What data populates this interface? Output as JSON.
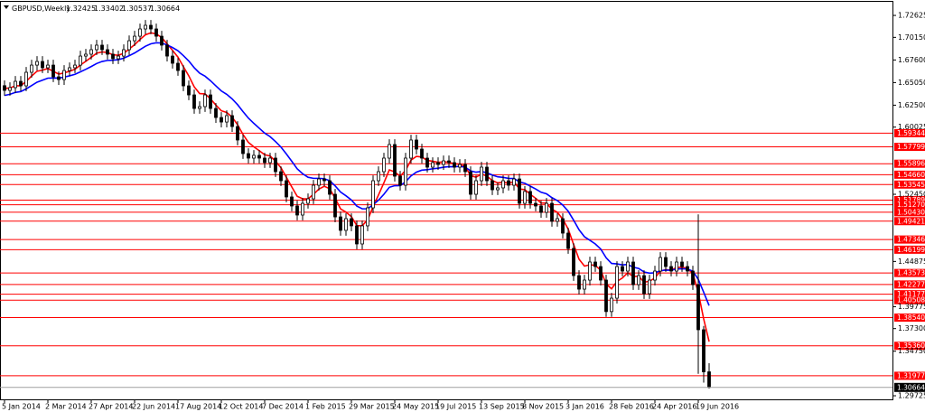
{
  "chart_data": {
    "type": "candlestick",
    "symbol": "GBPUSD,Weekly",
    "categories": [
      "5 Jan 2014",
      null,
      null,
      null,
      null,
      null,
      null,
      null,
      "2 Mar 2014",
      null,
      null,
      null,
      null,
      null,
      null,
      null,
      "27 Apr 2014",
      null,
      null,
      null,
      null,
      null,
      null,
      null,
      "22 Jun 2014",
      null,
      null,
      null,
      null,
      null,
      null,
      null,
      "17 Aug 2014",
      null,
      null,
      null,
      null,
      null,
      null,
      null,
      "12 Oct 2014",
      null,
      null,
      null,
      null,
      null,
      null,
      null,
      "7 Dec 2014",
      null,
      null,
      null,
      null,
      null,
      null,
      null,
      "1 Feb 2015",
      null,
      null,
      null,
      null,
      null,
      null,
      null,
      "29 Mar 2015",
      null,
      null,
      null,
      null,
      null,
      null,
      null,
      "24 May 2015",
      null,
      null,
      null,
      null,
      null,
      null,
      null,
      "19 Jul 2015",
      null,
      null,
      null,
      null,
      null,
      null,
      null,
      "13 Sep 2015",
      null,
      null,
      null,
      null,
      null,
      null,
      null,
      "8 Nov 2015",
      null,
      null,
      null,
      null,
      null,
      null,
      null,
      "3 Jan 2016",
      null,
      null,
      null,
      null,
      null,
      null,
      null,
      "28 Feb 2016",
      null,
      null,
      null,
      null,
      null,
      null,
      null,
      "24 Apr 2016",
      null,
      null,
      null,
      null,
      null,
      null,
      null,
      "19 Jun 2016",
      null,
      null
    ],
    "open": [
      1.647,
      1.6417,
      1.6448,
      1.6519,
      1.6468,
      1.6621,
      1.6702,
      1.6743,
      1.6672,
      1.6702,
      1.657,
      1.6539,
      1.6641,
      1.6672,
      1.6702,
      1.6804,
      1.6825,
      1.6876,
      1.6927,
      1.6876,
      1.6825,
      1.6774,
      1.6804,
      1.6876,
      1.6977,
      1.7028,
      1.711,
      1.7151,
      1.711,
      1.7028,
      1.6927,
      1.6804,
      1.6723,
      1.6641,
      1.6468,
      1.6366,
      1.6213,
      1.6234,
      1.6366,
      1.6213,
      1.6111,
      1.606,
      1.6132,
      1.6009,
      1.5857,
      1.5704,
      1.5653,
      1.5684,
      1.5653,
      1.5602,
      1.5653,
      1.55,
      1.5398,
      1.5215,
      1.5113,
      1.5011,
      1.5143,
      1.5194,
      1.5347,
      1.5418,
      1.5398,
      1.5245,
      1.499,
      1.4838,
      1.497,
      1.4889,
      1.4685,
      1.4889,
      1.5092,
      1.5398,
      1.55,
      1.5653,
      1.5806,
      1.5449,
      1.5347,
      1.5653,
      1.5857,
      1.5755,
      1.5653,
      1.5551,
      1.5602,
      1.5581,
      1.5622,
      1.5602,
      1.5551,
      1.5581,
      1.55,
      1.5245,
      1.5398,
      1.5551,
      1.5398,
      1.5296,
      1.5317,
      1.5398,
      1.5347,
      1.5418,
      1.5143,
      1.5277,
      1.5143,
      1.5113,
      1.5041,
      1.5143,
      1.494,
      1.497,
      1.4807,
      1.4634,
      1.4328,
      1.4175,
      1.4277,
      1.4481,
      1.443,
      1.4277,
      1.3922,
      1.4073,
      1.443,
      1.4379,
      1.4481,
      1.4226,
      1.4328,
      1.4124,
      1.4277,
      1.4379,
      1.4532,
      1.443,
      1.4379,
      1.4481,
      1.443,
      1.4379,
      1.4226,
      1.3717,
      1.32425
    ],
    "high": [
      1.653,
      1.6508,
      1.6579,
      1.6579,
      1.6681,
      1.6762,
      1.6803,
      1.6803,
      1.6762,
      1.6762,
      1.663,
      1.6701,
      1.6732,
      1.6762,
      1.6864,
      1.6885,
      1.6936,
      1.6987,
      1.6987,
      1.6936,
      1.6885,
      1.6864,
      1.6936,
      1.7037,
      1.7088,
      1.717,
      1.7211,
      1.7211,
      1.717,
      1.7088,
      1.6987,
      1.6864,
      1.6783,
      1.6701,
      1.6528,
      1.6426,
      1.6294,
      1.6426,
      1.6426,
      1.6273,
      1.6171,
      1.6192,
      1.6192,
      1.6069,
      1.5917,
      1.5764,
      1.5744,
      1.5744,
      1.5713,
      1.5713,
      1.5713,
      1.556,
      1.5458,
      1.5275,
      1.5173,
      1.5203,
      1.5254,
      1.5407,
      1.5478,
      1.5478,
      1.5458,
      1.5305,
      1.505,
      1.503,
      1.503,
      1.4949,
      1.4949,
      1.5152,
      1.5458,
      1.556,
      1.5713,
      1.5866,
      1.5866,
      1.5509,
      1.5713,
      1.5917,
      1.5917,
      1.5815,
      1.5713,
      1.5662,
      1.5662,
      1.5682,
      1.5682,
      1.5662,
      1.5641,
      1.5641,
      1.556,
      1.5458,
      1.5611,
      1.5611,
      1.5458,
      1.5377,
      1.5458,
      1.5458,
      1.5478,
      1.5478,
      1.5337,
      1.5337,
      1.5203,
      1.5173,
      1.5203,
      1.5203,
      1.503,
      1.503,
      1.4867,
      1.4694,
      1.4388,
      1.4337,
      1.4541,
      1.4541,
      1.449,
      1.4337,
      1.4133,
      1.449,
      1.449,
      1.4541,
      1.4541,
      1.4388,
      1.4388,
      1.4337,
      1.4439,
      1.4592,
      1.4592,
      1.449,
      1.4541,
      1.4541,
      1.449,
      1.4439,
      1.5018,
      1.376,
      1.33402
    ],
    "low": [
      1.6357,
      1.6357,
      1.6388,
      1.6408,
      1.6408,
      1.6561,
      1.6642,
      1.6612,
      1.6612,
      1.651,
      1.6479,
      1.6479,
      1.6581,
      1.6612,
      1.6642,
      1.6744,
      1.6765,
      1.6816,
      1.6816,
      1.6765,
      1.6714,
      1.6714,
      1.6744,
      1.6816,
      1.6917,
      1.6968,
      1.705,
      1.705,
      1.6968,
      1.6867,
      1.6744,
      1.6663,
      1.6581,
      1.6408,
      1.6306,
      1.6153,
      1.6153,
      1.6174,
      1.6153,
      1.6051,
      1.6,
      1.6,
      1.5949,
      1.5797,
      1.5644,
      1.5593,
      1.5593,
      1.5593,
      1.5542,
      1.5542,
      1.544,
      1.5338,
      1.5155,
      1.5053,
      1.4951,
      1.4951,
      1.5083,
      1.5134,
      1.5287,
      1.5338,
      1.5185,
      1.493,
      1.4778,
      1.4778,
      1.4829,
      1.4625,
      1.4625,
      1.4829,
      1.5032,
      1.5338,
      1.544,
      1.5593,
      1.5389,
      1.5287,
      1.5287,
      1.5593,
      1.5695,
      1.5593,
      1.5491,
      1.5491,
      1.5521,
      1.5521,
      1.5542,
      1.5491,
      1.5491,
      1.544,
      1.5185,
      1.5185,
      1.5338,
      1.5338,
      1.5236,
      1.5236,
      1.5257,
      1.5287,
      1.5287,
      1.5083,
      1.5083,
      1.5083,
      1.5053,
      1.4981,
      1.4981,
      1.488,
      1.488,
      1.4747,
      1.4574,
      1.4268,
      1.4115,
      1.4115,
      1.4217,
      1.437,
      1.4217,
      1.3862,
      1.3862,
      1.4013,
      1.4319,
      1.4319,
      1.4166,
      1.4166,
      1.4064,
      1.4064,
      1.4217,
      1.4319,
      1.437,
      1.4319,
      1.4319,
      1.437,
      1.4319,
      1.4166,
      1.322,
      1.312,
      1.30537
    ],
    "close": [
      1.6417,
      1.6448,
      1.6519,
      1.6468,
      1.6621,
      1.6702,
      1.6743,
      1.6672,
      1.6702,
      1.657,
      1.6539,
      1.6641,
      1.6672,
      1.6702,
      1.6804,
      1.6825,
      1.6876,
      1.6927,
      1.6876,
      1.6825,
      1.6774,
      1.6804,
      1.6876,
      1.6977,
      1.7028,
      1.711,
      1.7151,
      1.711,
      1.7028,
      1.6927,
      1.6804,
      1.6723,
      1.6641,
      1.6468,
      1.6366,
      1.6213,
      1.6234,
      1.6366,
      1.6213,
      1.6111,
      1.606,
      1.6132,
      1.6009,
      1.5857,
      1.5704,
      1.5653,
      1.5684,
      1.5653,
      1.5602,
      1.5653,
      1.55,
      1.5398,
      1.5215,
      1.5113,
      1.5011,
      1.5143,
      1.5194,
      1.5347,
      1.5418,
      1.5398,
      1.5245,
      1.499,
      1.4838,
      1.497,
      1.4889,
      1.4685,
      1.4889,
      1.5092,
      1.5398,
      1.55,
      1.5653,
      1.5806,
      1.5449,
      1.5347,
      1.5653,
      1.5857,
      1.5755,
      1.5653,
      1.5551,
      1.5602,
      1.5581,
      1.5622,
      1.5602,
      1.5551,
      1.5581,
      1.55,
      1.5245,
      1.5398,
      1.5551,
      1.5398,
      1.5296,
      1.5317,
      1.5398,
      1.5347,
      1.5418,
      1.5143,
      1.5277,
      1.5143,
      1.5113,
      1.5041,
      1.5143,
      1.494,
      1.497,
      1.4807,
      1.4634,
      1.4328,
      1.4175,
      1.4277,
      1.4481,
      1.443,
      1.4277,
      1.3922,
      1.4073,
      1.443,
      1.4379,
      1.4481,
      1.4226,
      1.4328,
      1.4124,
      1.4277,
      1.4379,
      1.4532,
      1.443,
      1.4379,
      1.4481,
      1.443,
      1.4379,
      1.4226,
      1.3717,
      1.32425,
      1.30664
    ],
    "up_color": "#ffffff",
    "down_color": "#000000",
    "wick_color": "#000000",
    "moving_averages": [
      {
        "color": "#ff0000",
        "values": [
          1.644,
          1.6443,
          1.6469,
          1.6469,
          1.6519,
          1.6579,
          1.6633,
          1.6645,
          1.6663,
          1.6632,
          1.6601,
          1.6614,
          1.6633,
          1.6655,
          1.6703,
          1.6745,
          1.679,
          1.6837,
          1.6851,
          1.6844,
          1.6819,
          1.6813,
          1.6835,
          1.6883,
          1.6932,
          1.6991,
          1.7044,
          1.7066,
          1.7054,
          1.7013,
          1.6942,
          1.6868,
          1.6792,
          1.6685,
          1.658,
          1.6457,
          1.6381,
          1.6377,
          1.6321,
          1.6251,
          1.6187,
          1.6168,
          1.6115,
          1.603,
          1.592,
          1.583,
          1.578,
          1.5737,
          1.5691,
          1.5677,
          1.5618,
          1.5545,
          1.5437,
          1.5328,
          1.5222,
          1.5195,
          1.5193,
          1.5245,
          1.5303,
          1.5335,
          1.5307,
          1.5201,
          1.5081,
          1.5044,
          1.4993,
          1.4892,
          1.4891,
          1.4957,
          1.5105,
          1.5237,
          1.5375,
          1.552,
          1.5497,
          1.5448,
          1.5515,
          1.563,
          1.5673,
          1.5665,
          1.5627,
          1.5618,
          1.5605,
          1.561,
          1.5607,
          1.5588,
          1.5585,
          1.5557,
          1.5455,
          1.5437,
          1.5475,
          1.545,
          1.54,
          1.5373,
          1.5382,
          1.5371,
          1.5387,
          1.5305,
          1.5297,
          1.5245,
          1.52,
          1.5147,
          1.5145,
          1.5077,
          1.5041,
          1.4964,
          1.4853,
          1.4679,
          1.4513,
          1.4435,
          1.445,
          1.4443,
          1.4389,
          1.4233,
          1.4179,
          1.4262,
          1.4301,
          1.4361,
          1.4317,
          1.4321,
          1.4254,
          1.4263,
          1.4302,
          1.4378,
          1.4395,
          1.439,
          1.442,
          1.4423,
          1.4409,
          1.4349,
          1.4139,
          1.3839,
          1.3583
        ]
      },
      {
        "color": "#0000ff",
        "values": [
          1.636,
          1.6373,
          1.6394,
          1.6404,
          1.6434,
          1.6471,
          1.6509,
          1.6532,
          1.6555,
          1.6557,
          1.6555,
          1.6567,
          1.6581,
          1.6598,
          1.6626,
          1.6655,
          1.6686,
          1.672,
          1.6743,
          1.6755,
          1.6757,
          1.6763,
          1.678,
          1.6808,
          1.6839,
          1.6877,
          1.6915,
          1.6942,
          1.6954,
          1.6951,
          1.693,
          1.69,
          1.6864,
          1.6809,
          1.6748,
          1.6673,
          1.6611,
          1.6577,
          1.6526,
          1.6468,
          1.6411,
          1.6372,
          1.6321,
          1.6256,
          1.6178,
          1.6104,
          1.6045,
          1.599,
          1.5935,
          1.5895,
          1.584,
          1.5778,
          1.57,
          1.5617,
          1.5532,
          1.5477,
          1.5437,
          1.5425,
          1.5424,
          1.5421,
          1.5397,
          1.534,
          1.527,
          1.5228,
          1.5181,
          1.5112,
          1.5081,
          1.5082,
          1.5127,
          1.5179,
          1.5245,
          1.5324,
          1.5342,
          1.5343,
          1.5386,
          1.5452,
          1.5495,
          1.5517,
          1.5522,
          1.5533,
          1.5539,
          1.555,
          1.5557,
          1.5556,
          1.5559,
          1.5551,
          1.5509,
          1.5494,
          1.5502,
          1.5488,
          1.5462,
          1.5442,
          1.5436,
          1.5424,
          1.5423,
          1.5384,
          1.5369,
          1.5337,
          1.5305,
          1.5268,
          1.525,
          1.5207,
          1.5174,
          1.5123,
          1.5054,
          1.4953,
          1.4845,
          1.4766,
          1.4726,
          1.4685,
          1.4628,
          1.4529,
          1.4465,
          1.446,
          1.4449,
          1.4453,
          1.4422,
          1.4409,
          1.4369,
          1.4356,
          1.4359,
          1.4383,
          1.439,
          1.4388,
          1.4401,
          1.4405,
          1.4402,
          1.4378,
          1.4286,
          1.414,
          1.399
        ]
      }
    ],
    "levels": {
      "color": "#ff0000",
      "values": [
        1.59344,
        1.57799,
        1.55896,
        1.5466,
        1.53545,
        1.51789,
        1.5127,
        1.5043,
        1.49421,
        1.47346,
        1.46199,
        1.43573,
        1.42277,
        1.41177,
        1.40508,
        1.3854,
        1.3536,
        1.31977
      ]
    },
    "level_labels": [
      "1.59344",
      "1.57799",
      "1.55896",
      "1.54660",
      "1.53545",
      "1.51789",
      "1.51270",
      "1.50430",
      "1.49421",
      "1.47346",
      "1.46199",
      "1.43573",
      "1.42277",
      "1.41177",
      "1.40508",
      "1.38540",
      "1.35360",
      "1.31977"
    ],
    "ylim": [
      1.2932,
      1.7416
    ],
    "yticks": [
      1.72625,
      {
        "value": 1.7015,
        "label": "1.70150"
      },
      {
        "value": 1.676,
        "label": "1.67600"
      },
      {
        "value": 1.6505,
        "label": "1.65050"
      },
      {
        "value": 1.625,
        "label": "1.62500"
      },
      1.60025,
      {
        "value": 1.5245,
        "label": "1.52450"
      },
      1.44875,
      1.39775,
      {
        "value": 1.373,
        "label": "1.37300"
      },
      {
        "value": 1.3475,
        "label": "1.34750"
      },
      1.29725
    ]
  }
}
